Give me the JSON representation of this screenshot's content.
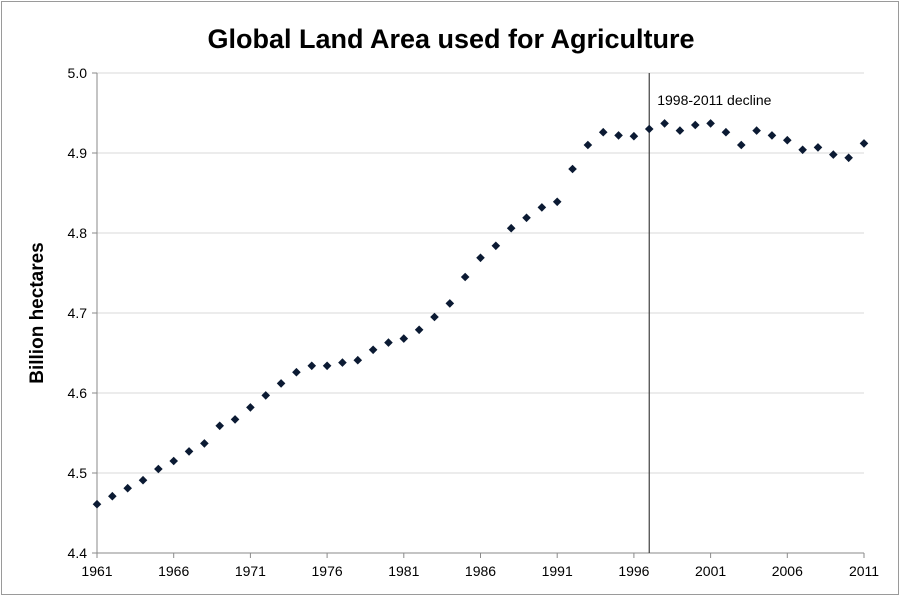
{
  "chart_data": {
    "type": "scatter",
    "title": "Global Land Area used for Agriculture",
    "xlabel": "",
    "ylabel": "Billion hectares",
    "xlim": [
      1961,
      2011
    ],
    "ylim": [
      4.4,
      5.0
    ],
    "x_ticks": [
      "1961",
      "1966",
      "1971",
      "1976",
      "1981",
      "1986",
      "1991",
      "1996",
      "2001",
      "2006",
      "2011"
    ],
    "y_ticks": [
      "4.4",
      "4.5",
      "4.6",
      "4.7",
      "4.8",
      "4.9",
      "5.0"
    ],
    "grid": true,
    "marker": "diamond",
    "marker_color": "#0b1a33",
    "annotation": {
      "text": "1998-2011 decline",
      "line_x": 1997
    },
    "series": [
      {
        "x": [
          1961,
          1962,
          1963,
          1964,
          1965,
          1966,
          1967,
          1968,
          1969,
          1970,
          1971,
          1972,
          1973,
          1974,
          1975,
          1976,
          1977,
          1978,
          1979,
          1980,
          1981,
          1982,
          1983,
          1984,
          1985,
          1986,
          1987,
          1988,
          1989,
          1990,
          1991,
          1992,
          1993,
          1994,
          1995,
          1996,
          1997,
          1998,
          1999,
          2000,
          2001,
          2002,
          2003,
          2004,
          2005,
          2006,
          2007,
          2008,
          2009,
          2010,
          2011
        ],
        "y": [
          4.461,
          4.471,
          4.481,
          4.491,
          4.505,
          4.515,
          4.527,
          4.537,
          4.559,
          4.567,
          4.582,
          4.597,
          4.612,
          4.626,
          4.634,
          4.634,
          4.638,
          4.641,
          4.654,
          4.663,
          4.668,
          4.679,
          4.695,
          4.712,
          4.745,
          4.769,
          4.784,
          4.806,
          4.819,
          4.832,
          4.839,
          4.88,
          4.91,
          4.926,
          4.922,
          4.921,
          4.93,
          4.937,
          4.928,
          4.935,
          4.937,
          4.926,
          4.91,
          4.928,
          4.922,
          4.916,
          4.904,
          4.907,
          4.898,
          4.894,
          4.912
        ]
      }
    ]
  }
}
